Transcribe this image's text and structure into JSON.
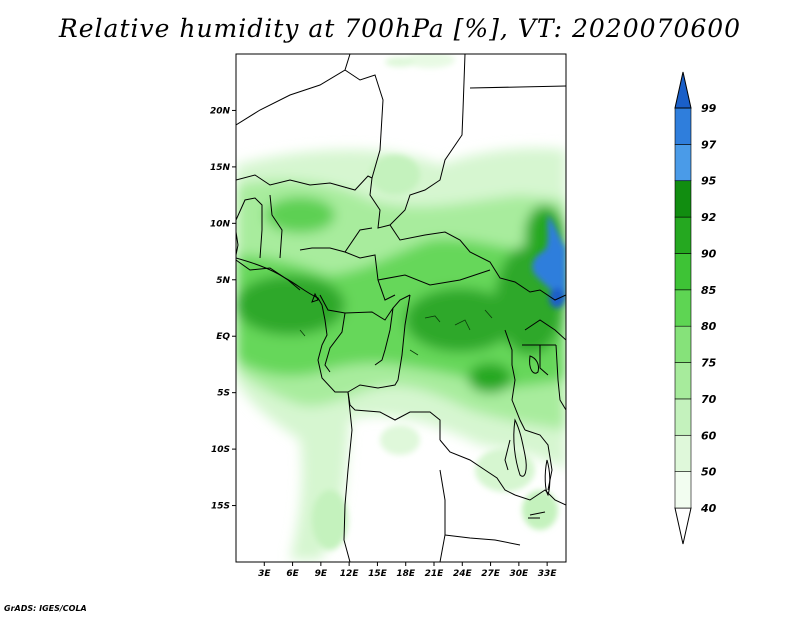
{
  "title": "Relative humidity at 700hPa [%], VT: 2020070600",
  "footer": "GrADS: IGES/COLA",
  "map": {
    "lon_range": [
      0,
      35
    ],
    "lat_range": [
      -20,
      25
    ],
    "lat_ticks": [
      {
        "value": 20,
        "label": "20N"
      },
      {
        "value": 15,
        "label": "15N"
      },
      {
        "value": 10,
        "label": "10N"
      },
      {
        "value": 5,
        "label": "5N"
      },
      {
        "value": 0,
        "label": "EQ"
      },
      {
        "value": -5,
        "label": "5S"
      },
      {
        "value": -10,
        "label": "10S"
      },
      {
        "value": -15,
        "label": "15S"
      }
    ],
    "lon_ticks": [
      {
        "value": 3,
        "label": "3E"
      },
      {
        "value": 6,
        "label": "6E"
      },
      {
        "value": 9,
        "label": "9E"
      },
      {
        "value": 12,
        "label": "12E"
      },
      {
        "value": 15,
        "label": "15E"
      },
      {
        "value": 18,
        "label": "18E"
      },
      {
        "value": 21,
        "label": "21E"
      },
      {
        "value": 24,
        "label": "24E"
      },
      {
        "value": 27,
        "label": "27E"
      },
      {
        "value": 30,
        "label": "30E"
      },
      {
        "value": 33,
        "label": "33E"
      }
    ]
  },
  "colorbar": {
    "levels": [
      {
        "label": "40",
        "color": "#f2fdf0"
      },
      {
        "label": "50",
        "color": "#dff8da"
      },
      {
        "label": "60",
        "color": "#c4f2bd"
      },
      {
        "label": "70",
        "color": "#a7eb9c"
      },
      {
        "label": "75",
        "color": "#86e27a"
      },
      {
        "label": "80",
        "color": "#5ed553"
      },
      {
        "label": "85",
        "color": "#3ec336"
      },
      {
        "label": "90",
        "color": "#25a820"
      },
      {
        "label": "92",
        "color": "#118d10"
      },
      {
        "label": "95",
        "color": "#4a9be8"
      },
      {
        "label": "97",
        "color": "#2f7edc"
      },
      {
        "label": "99",
        "color": "#1a5fc8"
      }
    ],
    "under_color": "#ffffff",
    "over_color": "#1a5fc8"
  }
}
